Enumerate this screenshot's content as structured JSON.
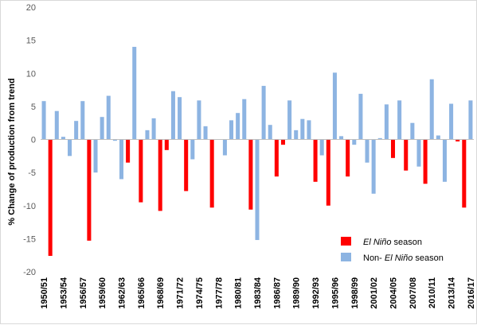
{
  "chart_data": {
    "type": "bar",
    "ylabel": "% Change of production from trend",
    "ylim": [
      -20,
      20
    ],
    "yticks": [
      20,
      15,
      10,
      5,
      0,
      -5,
      -10,
      -15,
      -20
    ],
    "grid": false,
    "legend_position": "bottom-right",
    "colors": {
      "el_nino": "#ff0000",
      "non_el_nino": "#8db4e2"
    },
    "legend": [
      {
        "key": "el_nino",
        "prefix": "",
        "italic": "El Niño",
        "suffix": " season"
      },
      {
        "key": "non_el_nino",
        "prefix": "Non- ",
        "italic": "El Niño",
        "suffix": " season"
      }
    ],
    "tick_labels": [
      "1950/51",
      "1953/54",
      "1956/57",
      "1959/60",
      "1962/63",
      "1965/66",
      "1968/69",
      "1971/72",
      "1974/75",
      "1977/78",
      "1980/81",
      "1983/84",
      "1986/87",
      "1989/90",
      "1992/93",
      "1995/96",
      "1998/99",
      "2001/02",
      "2004/05",
      "2007/08",
      "2010/11",
      "2013/14",
      "2016/17"
    ],
    "categories": [
      "1950/51",
      "1951/52",
      "1952/53",
      "1953/54",
      "1954/55",
      "1955/56",
      "1956/57",
      "1957/58",
      "1958/59",
      "1959/60",
      "1960/61",
      "1961/62",
      "1962/63",
      "1963/64",
      "1964/65",
      "1965/66",
      "1966/67",
      "1967/68",
      "1968/69",
      "1969/70",
      "1970/71",
      "1971/72",
      "1972/73",
      "1973/74",
      "1974/75",
      "1975/76",
      "1976/77",
      "1977/78",
      "1978/79",
      "1979/80",
      "1980/81",
      "1981/82",
      "1982/83",
      "1983/84",
      "1984/85",
      "1985/86",
      "1986/87",
      "1987/88",
      "1988/89",
      "1989/90",
      "1990/91",
      "1991/92",
      "1992/93",
      "1993/94",
      "1994/95",
      "1995/96",
      "1996/97",
      "1997/98",
      "1998/99",
      "1999/00",
      "2000/01",
      "2001/02",
      "2002/03",
      "2003/04",
      "2004/05",
      "2005/06",
      "2006/07",
      "2007/08",
      "2008/09",
      "2009/10",
      "2010/11",
      "2011/12",
      "2012/13",
      "2013/14",
      "2014/15",
      "2015/16",
      "2016/17"
    ],
    "series": [
      {
        "key": "non_el_nino",
        "values": [
          5.8,
          null,
          4.3,
          0.4,
          -2.5,
          2.8,
          5.8,
          null,
          -5.0,
          3.4,
          6.6,
          -0.2,
          -6.0,
          null,
          14.0,
          null,
          1.4,
          3.2,
          null,
          null,
          7.3,
          6.4,
          null,
          -3.0,
          5.9,
          2.0,
          null,
          null,
          -2.4,
          2.9,
          4.0,
          6.1,
          null,
          -15.2,
          8.1,
          2.2,
          null,
          null,
          5.9,
          1.4,
          3.1,
          2.9,
          null,
          -2.4,
          null,
          10.1,
          0.5,
          null,
          -0.8,
          6.9,
          -3.5,
          -8.2,
          0.2,
          5.3,
          null,
          5.9,
          null,
          2.5,
          -4.1,
          null,
          9.1,
          0.6,
          -6.4,
          5.4,
          null,
          null,
          5.9
        ]
      },
      {
        "key": "el_nino",
        "values": [
          null,
          -17.6,
          null,
          null,
          null,
          null,
          null,
          -15.3,
          null,
          null,
          null,
          null,
          null,
          -3.5,
          null,
          -9.5,
          null,
          null,
          -10.8,
          -1.6,
          null,
          null,
          -7.8,
          null,
          null,
          null,
          -10.3,
          null,
          null,
          null,
          null,
          null,
          -10.6,
          null,
          null,
          null,
          -5.6,
          -0.8,
          null,
          null,
          null,
          null,
          -6.4,
          null,
          -10.0,
          null,
          null,
          -5.6,
          null,
          null,
          null,
          null,
          null,
          null,
          -2.8,
          null,
          -4.7,
          null,
          null,
          -6.7,
          null,
          null,
          null,
          null,
          -0.3,
          -10.3,
          null
        ]
      }
    ]
  }
}
